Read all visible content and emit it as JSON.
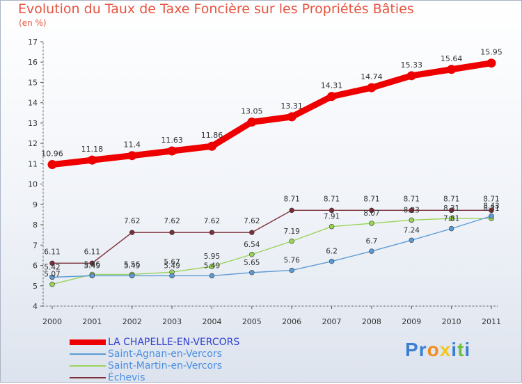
{
  "title": "Evolution du Taux de Taxe Foncière sur les Propriétés Bâties",
  "unit": "(en %)",
  "logo": {
    "letters": [
      "P",
      "r",
      "o",
      "x",
      "i",
      "t",
      "i"
    ],
    "colors": [
      "#3b7fd4",
      "#3b7fd4",
      "#f28c1e",
      "#f6c623",
      "#3b7fd4",
      "#6cbf3f",
      "#3b7fd4"
    ]
  },
  "chart_data": {
    "type": "line",
    "title": "Evolution du Taux de Taxe Foncière sur les Propriétés Bâties",
    "ylabel": "(en %)",
    "xlabel": "",
    "x": [
      "2000",
      "2001",
      "2002",
      "2003",
      "2004",
      "2005",
      "2006",
      "2007",
      "2008",
      "2009",
      "2010",
      "2011"
    ],
    "ylim": [
      4,
      17
    ],
    "yticks": [
      "4",
      "5",
      "6",
      "7",
      "8",
      "9",
      "10",
      "11",
      "12",
      "13",
      "14",
      "15",
      "16",
      "17"
    ],
    "grid": false,
    "legend_position": "bottom-left",
    "series": [
      {
        "name": "LA CHAPELLE-EN-VERCORS",
        "color": "#ee0000",
        "values": [
          10.96,
          11.18,
          11.4,
          11.63,
          11.86,
          13.05,
          13.31,
          14.31,
          14.74,
          15.33,
          15.64,
          15.95
        ],
        "labels": [
          "10.96",
          "11.18",
          "11.4",
          "11.63",
          "11.86",
          "13.05",
          "13.31",
          "14.31",
          "14.74",
          "15.33",
          "15.64",
          "15.95"
        ]
      },
      {
        "name": "Saint-Agnan-en-Vercors",
        "color": "#5b9bd5",
        "values": [
          5.42,
          5.49,
          5.49,
          5.49,
          5.49,
          5.65,
          5.76,
          6.2,
          6.7,
          7.24,
          7.81,
          8.43
        ],
        "labels": [
          "5.42",
          "5.49",
          "5.49",
          "5.49",
          "5.49",
          "5.65",
          "5.76",
          "6.2",
          "6.7",
          "7.24",
          "7.81",
          "8.43"
        ]
      },
      {
        "name": "Saint-Martin-en-Vercors",
        "color": "#9ad35a",
        "values": [
          5.07,
          5.56,
          5.56,
          5.67,
          5.95,
          6.54,
          7.19,
          7.91,
          8.07,
          8.23,
          8.31,
          8.31
        ],
        "labels": [
          "5.07",
          "5.56",
          "5.56",
          "5.67",
          "5.95",
          "6.54",
          "7.19",
          "7.91",
          "8.07",
          "8.23",
          "8.31",
          "8.31"
        ]
      },
      {
        "name": "Échevis",
        "color": "#7a2e38",
        "values": [
          6.11,
          6.11,
          7.62,
          7.62,
          7.62,
          7.62,
          8.71,
          8.71,
          8.71,
          8.71,
          8.71,
          8.71
        ],
        "labels": [
          "6.11",
          "6.11",
          "7.62",
          "7.62",
          "7.62",
          "7.62",
          "8.71",
          "8.71",
          "8.71",
          "8.71",
          "8.71",
          "8.71"
        ]
      }
    ]
  }
}
